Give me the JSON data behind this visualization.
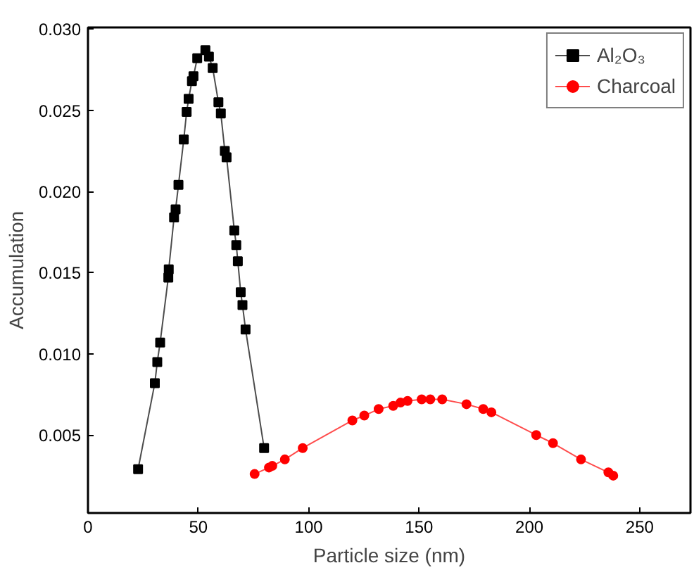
{
  "chart_data": {
    "type": "line",
    "xlabel": "Particle size (nm)",
    "ylabel": "Accumulation",
    "xlim": [
      0,
      273
    ],
    "ylim": [
      0.0002,
      0.0301
    ],
    "xticks": [
      0,
      50,
      100,
      150,
      200,
      250
    ],
    "yticks": [
      {
        "value": 0.005,
        "label": "0.005"
      },
      {
        "value": 0.01,
        "label": "0.010"
      },
      {
        "value": 0.015,
        "label": "0.015"
      },
      {
        "value": 0.02,
        "label": "0.020"
      },
      {
        "value": 0.025,
        "label": "0.025"
      },
      {
        "value": 0.03,
        "label": "0.030"
      }
    ],
    "grid": false,
    "legend": "top right",
    "series": [
      {
        "name": "Al₂O₃",
        "color": "#000000",
        "marker": "square",
        "x": [
          22.7,
          30.3,
          31.4,
          32.7,
          36.4,
          36.6,
          39.0,
          39.7,
          41.0,
          43.4,
          44.7,
          45.6,
          47.1,
          47.8,
          49.5,
          53.2,
          54.8,
          56.5,
          59.1,
          60.2,
          62.0,
          62.8,
          66.3,
          67.2,
          67.9,
          69.2,
          70.0,
          71.4,
          79.8
        ],
        "values": [
          0.0029,
          0.0082,
          0.0095,
          0.0107,
          0.0147,
          0.0152,
          0.0184,
          0.0189,
          0.0204,
          0.0232,
          0.0249,
          0.0257,
          0.0268,
          0.0271,
          0.0282,
          0.0287,
          0.0283,
          0.0276,
          0.0255,
          0.0248,
          0.0225,
          0.0221,
          0.0176,
          0.0167,
          0.0157,
          0.0138,
          0.013,
          0.0115,
          0.0042
        ]
      },
      {
        "name": "Charcoal",
        "color": "#ff0000",
        "marker": "circle",
        "x": [
          75.5,
          82.0,
          83.5,
          89.2,
          97.3,
          119.8,
          125.2,
          131.7,
          138.3,
          141.6,
          144.8,
          151.2,
          155.1,
          160.5,
          171.5,
          179.1,
          182.8,
          203.1,
          210.7,
          223.4,
          235.8,
          238.0
        ],
        "values": [
          0.0026,
          0.003,
          0.0031,
          0.0035,
          0.0042,
          0.0059,
          0.0062,
          0.0066,
          0.0068,
          0.007,
          0.0071,
          0.0072,
          0.0072,
          0.0072,
          0.0069,
          0.0066,
          0.0064,
          0.005,
          0.0045,
          0.0035,
          0.0027,
          0.0025
        ]
      }
    ]
  }
}
